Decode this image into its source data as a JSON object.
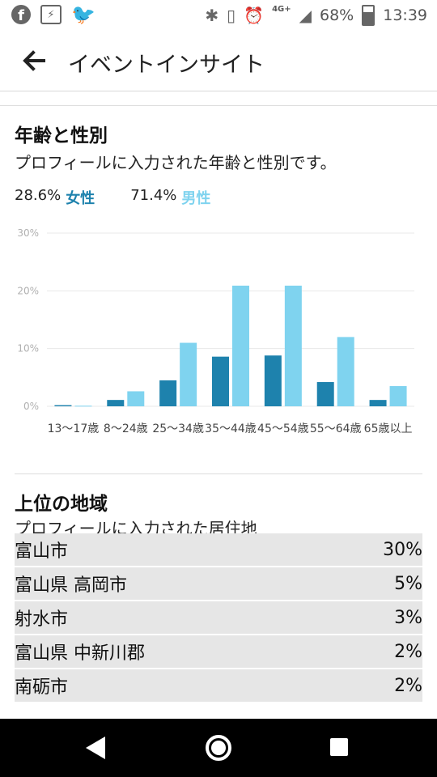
{
  "status_bar": {
    "network": "4G+",
    "battery": "68%",
    "time": "13:39",
    "left_icons": [
      "facebook-icon",
      "messenger-icon",
      "twitter-icon"
    ],
    "right_icons": [
      "bluetooth-icon",
      "vibrate-icon",
      "alarm-icon",
      "signal-icon",
      "battery-icon"
    ]
  },
  "app_bar": {
    "title": "イベントインサイト"
  },
  "age_gender": {
    "heading": "年齢と性別",
    "description": "プロフィールに入力された年齢と性別です。",
    "female": {
      "percent": "28.6%",
      "label": "女性",
      "color": "#1e82ad"
    },
    "male": {
      "percent": "71.4%",
      "label": "男性",
      "color": "#7fd3ef"
    }
  },
  "chart_data": {
    "type": "bar",
    "categories": [
      "13〜17歳",
      "18〜24歳",
      "25〜34歳",
      "35〜44歳",
      "45〜54歳",
      "55〜64歳",
      "65歳以上"
    ],
    "category_labels_visible": [
      "13〜17歳",
      "8〜24歳",
      "25〜34歳",
      "35〜44歳",
      "45〜54歳",
      "55〜64歳",
      "65歳以上"
    ],
    "series": [
      {
        "name": "女性",
        "color": "#1e82ad",
        "values": [
          0.2,
          1.1,
          4.5,
          8.6,
          8.8,
          4.2,
          1.1
        ]
      },
      {
        "name": "男性",
        "color": "#7fd3ef",
        "values": [
          0.1,
          2.6,
          11.0,
          20.9,
          20.9,
          12.0,
          3.5
        ]
      }
    ],
    "yticks": [
      "0%",
      "10%",
      "20%",
      "30%"
    ],
    "ylim": [
      0,
      30
    ],
    "grid": true
  },
  "regions": {
    "heading": "上位の地域",
    "description": "プロフィールに入力された居住地",
    "items": [
      {
        "name": "富山市",
        "percent": "30%"
      },
      {
        "name": "富山県 高岡市",
        "percent": "5%"
      },
      {
        "name": "射水市",
        "percent": "3%"
      },
      {
        "name": "富山県 中新川郡",
        "percent": "2%"
      },
      {
        "name": "南砺市",
        "percent": "2%"
      }
    ]
  }
}
